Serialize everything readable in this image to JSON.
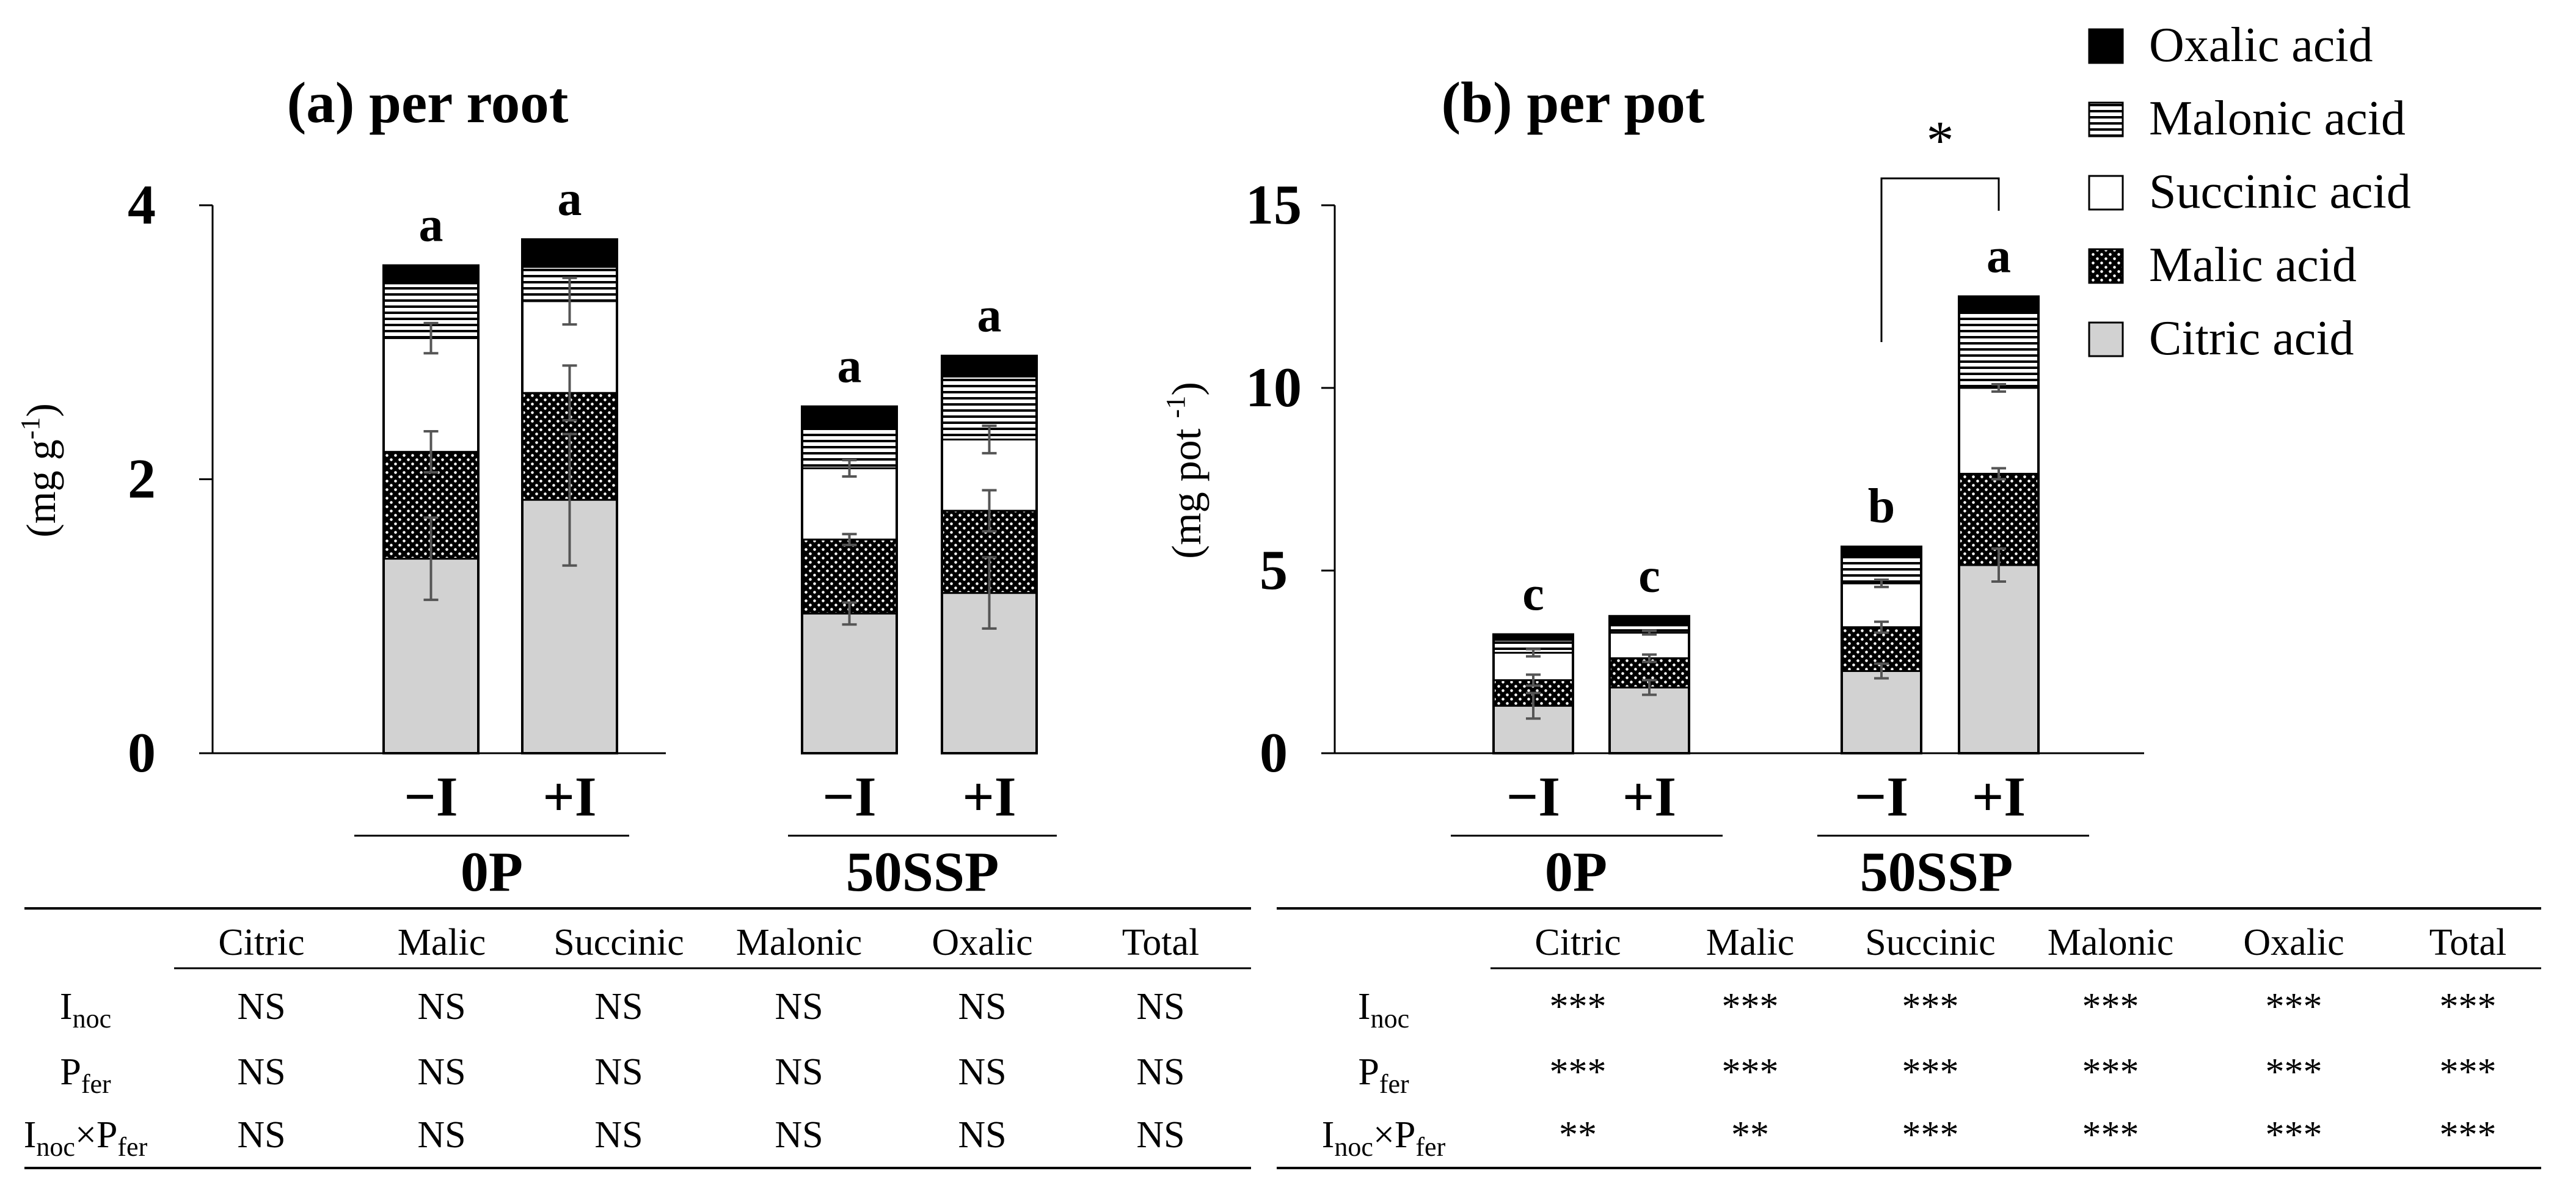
{
  "legend": {
    "items": [
      {
        "name": "Oxalic acid",
        "pattern": "solid-black"
      },
      {
        "name": "Malonic acid",
        "pattern": "horizontal-stripes"
      },
      {
        "name": "Succinic acid",
        "pattern": "white"
      },
      {
        "name": "Malic acid",
        "pattern": "dotted-black"
      },
      {
        "name": "Citric acid",
        "pattern": "light-gray"
      }
    ]
  },
  "chart_data": [
    {
      "type": "bar",
      "stacked": true,
      "title": "(a) per root",
      "ylabel": "(mg g-1)",
      "ylabel_parts": {
        "pre": "(mg g",
        "sup": "-1",
        "post": ")"
      },
      "ylim": [
        0,
        4
      ],
      "yticks": [
        0,
        2,
        4
      ],
      "groups": [
        "0P",
        "50SSP"
      ],
      "categories": [
        "−I",
        "+I",
        "−I",
        "+I"
      ],
      "category_group": [
        0,
        0,
        1,
        1
      ],
      "series": [
        {
          "name": "Citric acid",
          "values": [
            1.42,
            1.85,
            1.02,
            1.17
          ],
          "errors": [
            0.3,
            0.48,
            0.08,
            0.26
          ]
        },
        {
          "name": "Malic acid",
          "values": [
            0.78,
            0.78,
            0.54,
            0.6
          ],
          "errors": [
            0.15,
            0.2,
            0.04,
            0.15
          ]
        },
        {
          "name": "Succinic acid",
          "values": [
            0.83,
            0.67,
            0.52,
            0.52
          ],
          "errors": [
            0.11,
            0.17,
            0.06,
            0.1
          ]
        },
        {
          "name": "Malonic acid",
          "values": [
            0.4,
            0.25,
            0.3,
            0.46
          ],
          "errors": [
            0,
            0,
            0,
            0
          ]
        },
        {
          "name": "Oxalic acid",
          "values": [
            0.13,
            0.2,
            0.15,
            0.15
          ],
          "errors": [
            0,
            0,
            0,
            0
          ]
        }
      ],
      "letters": [
        "a",
        "a",
        "a",
        "a"
      ]
    },
    {
      "type": "bar",
      "stacked": true,
      "title": "(b) per pot",
      "ylabel": "(mg pot -1)",
      "ylabel_parts": {
        "pre": "(mg pot ",
        "sup": "-1",
        "post": ")"
      },
      "ylim": [
        0,
        15
      ],
      "yticks": [
        0,
        5,
        10,
        15
      ],
      "groups": [
        "0P",
        "50SSP"
      ],
      "categories": [
        "−I",
        "+I",
        "−I",
        "+I"
      ],
      "category_group": [
        0,
        0,
        1,
        1
      ],
      "series": [
        {
          "name": "Citric acid",
          "values": [
            1.3,
            1.8,
            2.25,
            5.15
          ],
          "errors": [
            0.35,
            0.2,
            0.2,
            0.45
          ]
        },
        {
          "name": "Malic acid",
          "values": [
            0.7,
            0.8,
            1.2,
            2.5
          ],
          "errors": [
            0.15,
            0.1,
            0.15,
            0.15
          ]
        },
        {
          "name": "Succinic acid",
          "values": [
            0.75,
            0.7,
            1.2,
            2.35
          ],
          "errors": [
            0.1,
            0.05,
            0.1,
            0.1
          ]
        },
        {
          "name": "Malonic acid",
          "values": [
            0.35,
            0.2,
            0.75,
            2.05
          ],
          "errors": [
            0,
            0,
            0,
            0
          ]
        },
        {
          "name": "Oxalic acid",
          "values": [
            0.15,
            0.25,
            0.25,
            0.45
          ],
          "errors": [
            0,
            0,
            0,
            0
          ]
        }
      ],
      "letters": [
        "c",
        "c",
        "b",
        "a"
      ],
      "significance": {
        "label": "*",
        "between": [
          2,
          3
        ]
      }
    }
  ],
  "tables": [
    {
      "headers": [
        "Citric",
        "Malic",
        "Succinic",
        "Malonic",
        "Oxalic",
        "Total"
      ],
      "rows": [
        {
          "label_main": "I",
          "label_sub": "noc",
          "cells": [
            "NS",
            "NS",
            "NS",
            "NS",
            "NS",
            "NS"
          ]
        },
        {
          "label_main": "P",
          "label_sub": "fer",
          "cells": [
            "NS",
            "NS",
            "NS",
            "NS",
            "NS",
            "NS"
          ]
        },
        {
          "label_main": "I",
          "label_sub": "noc",
          "label_main2": "×P",
          "label_sub2": "fer",
          "cells": [
            "NS",
            "NS",
            "NS",
            "NS",
            "NS",
            "NS"
          ]
        }
      ]
    },
    {
      "headers": [
        "Citric",
        "Malic",
        "Succinic",
        "Malonic",
        "Oxalic",
        "Total"
      ],
      "rows": [
        {
          "label_main": "I",
          "label_sub": "noc",
          "cells": [
            "***",
            "***",
            "***",
            "***",
            "***",
            "***"
          ]
        },
        {
          "label_main": "P",
          "label_sub": "fer",
          "cells": [
            "***",
            "***",
            "***",
            "***",
            "***",
            "***"
          ]
        },
        {
          "label_main": "I",
          "label_sub": "noc",
          "label_main2": "×P",
          "label_sub2": "fer",
          "cells": [
            "**",
            "**",
            "***",
            "***",
            "***",
            "***"
          ]
        }
      ]
    }
  ]
}
